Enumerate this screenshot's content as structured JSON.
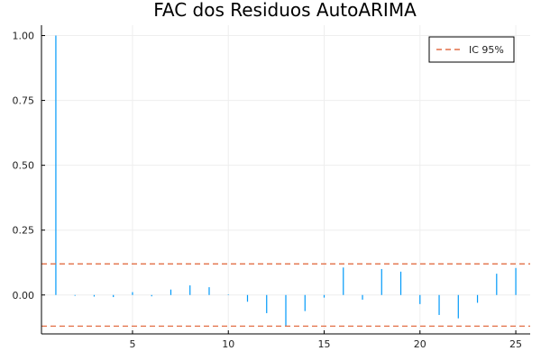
{
  "chart_data": {
    "type": "bar",
    "title": "FAC dos Residuos AutoARIMA",
    "xlabel": "",
    "ylabel": "",
    "xlim": [
      0.25,
      25.75
    ],
    "ylim": [
      -0.15,
      1.04
    ],
    "xticks": [
      5,
      10,
      15,
      20,
      25
    ],
    "yticks": [
      0.0,
      0.25,
      0.5,
      0.75,
      1.0
    ],
    "ytick_labels": [
      "0.00",
      "0.25",
      "0.50",
      "0.75",
      "1.00"
    ],
    "grid": true,
    "legend": {
      "placement": "top-right",
      "entries": [
        "IC 95%"
      ]
    },
    "colors": {
      "bars": "#009af9",
      "ci": "#e26f46",
      "axis": "#000000",
      "grid": "#eeeeee"
    },
    "series": [
      {
        "name": "",
        "x": [
          1,
          2,
          3,
          4,
          5,
          6,
          7,
          8,
          9,
          10,
          11,
          12,
          13,
          14,
          15,
          16,
          17,
          18,
          19,
          20,
          21,
          22,
          23,
          24,
          25
        ],
        "values": [
          1.0,
          -0.003,
          -0.006,
          -0.008,
          0.011,
          -0.005,
          0.021,
          0.037,
          0.03,
          0.002,
          -0.026,
          -0.07,
          -0.12,
          -0.062,
          -0.01,
          0.106,
          -0.018,
          0.1,
          0.09,
          -0.035,
          -0.077,
          -0.09,
          -0.03,
          0.082,
          0.104
        ]
      },
      {
        "name": "IC 95%",
        "type": "hline",
        "values": [
          0.12,
          -0.12
        ]
      }
    ]
  }
}
